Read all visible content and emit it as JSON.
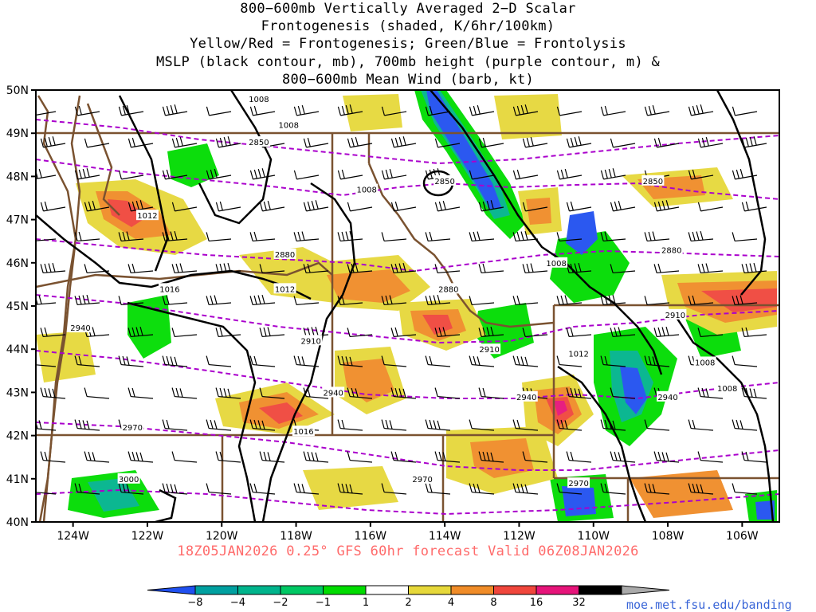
{
  "title": {
    "line1": "800−600mb Vertically Averaged 2−D Scalar",
    "line2": "Frontogenesis (shaded, K/6hr/100km)",
    "line3": "Yellow/Red = Frontogenesis;  Green/Blue = Frontolysis",
    "line4": "MSLP (black contour, mb), 700mb height (purple contour, m) &",
    "line5": "800−600mb Mean Wind (barb, kt)"
  },
  "map": {
    "lon_range": [
      -125,
      -105
    ],
    "lat_range": [
      40,
      50
    ],
    "lat_ticks": [
      "40N",
      "41N",
      "42N",
      "43N",
      "44N",
      "45N",
      "46N",
      "47N",
      "48N",
      "49N",
      "50N"
    ],
    "lon_ticks": [
      "124W",
      "122W",
      "120W",
      "118W",
      "116W",
      "114W",
      "112W",
      "110W",
      "108W",
      "106W"
    ],
    "lon_tick_values": [
      -124,
      -122,
      -120,
      -118,
      -116,
      -114,
      -112,
      -110,
      -108,
      -106
    ],
    "mslp_labels": [
      {
        "text": "1008",
        "lon": -119.0,
        "lat": 49.8
      },
      {
        "text": "1008",
        "lon": -118.2,
        "lat": 49.2
      },
      {
        "text": "1008",
        "lon": -116.1,
        "lat": 47.7
      },
      {
        "text": "1012",
        "lon": -122.0,
        "lat": 47.1
      },
      {
        "text": "1016",
        "lon": -121.4,
        "lat": 45.4
      },
      {
        "text": "1012",
        "lon": -118.3,
        "lat": 45.4
      },
      {
        "text": "1016",
        "lon": -117.8,
        "lat": 42.1
      },
      {
        "text": "1008",
        "lon": -111.0,
        "lat": 46.0
      },
      {
        "text": "1012",
        "lon": -110.4,
        "lat": 43.9
      },
      {
        "text": "1008",
        "lon": -107.0,
        "lat": 43.7
      },
      {
        "text": "1008",
        "lon": -106.4,
        "lat": 43.1
      }
    ],
    "height_labels": [
      {
        "text": "2850",
        "lon": -119.0,
        "lat": 48.8
      },
      {
        "text": "2850",
        "lon": -114.0,
        "lat": 47.9
      },
      {
        "text": "2850",
        "lon": -108.4,
        "lat": 47.9
      },
      {
        "text": "2880",
        "lon": -118.3,
        "lat": 46.2
      },
      {
        "text": "2880",
        "lon": -113.9,
        "lat": 45.4
      },
      {
        "text": "2880",
        "lon": -107.9,
        "lat": 46.3
      },
      {
        "text": "2910",
        "lon": -117.6,
        "lat": 44.2
      },
      {
        "text": "2910",
        "lon": -112.8,
        "lat": 44.0
      },
      {
        "text": "2910",
        "lon": -107.8,
        "lat": 44.8
      },
      {
        "text": "2940",
        "lon": -123.8,
        "lat": 44.5
      },
      {
        "text": "2940",
        "lon": -117.0,
        "lat": 43.0
      },
      {
        "text": "2940",
        "lon": -111.8,
        "lat": 42.9
      },
      {
        "text": "2940",
        "lon": -108.0,
        "lat": 42.9
      },
      {
        "text": "2970",
        "lon": -122.4,
        "lat": 42.2
      },
      {
        "text": "2970",
        "lon": -114.6,
        "lat": 41.0
      },
      {
        "text": "2970",
        "lon": -110.4,
        "lat": 40.9
      },
      {
        "text": "3000",
        "lon": -122.5,
        "lat": 41.0
      }
    ],
    "colors": {
      "frontogenesis": [
        "#e6d83a",
        "#f08c28",
        "#f0463c",
        "#e6147a",
        "#000000",
        "#aaaaaa"
      ],
      "frontolysis": [
        "#2050f0",
        "#00a0a0",
        "#00c878",
        "#00dc00"
      ],
      "height_contour": "#aa00cc",
      "mslp_contour": "#000000",
      "border": "#7a5230"
    }
  },
  "footer": "18Z05JAN2026 0.25° GFS 60hr forecast Valid 06Z08JAN2026",
  "colorbar": {
    "labels": [
      "−8",
      "−4",
      "−2",
      "−1",
      "1",
      "2",
      "4",
      "8",
      "16",
      "32"
    ],
    "colors": [
      "#2050f0",
      "#00a0a0",
      "#00b48c",
      "#00c864",
      "#00dc00",
      "#ffffff",
      "#e6d83a",
      "#f08c28",
      "#f0463c",
      "#e6147a",
      "#000000",
      "#aaaaaa"
    ]
  },
  "credit": "moe.met.fsu.edu/banding"
}
